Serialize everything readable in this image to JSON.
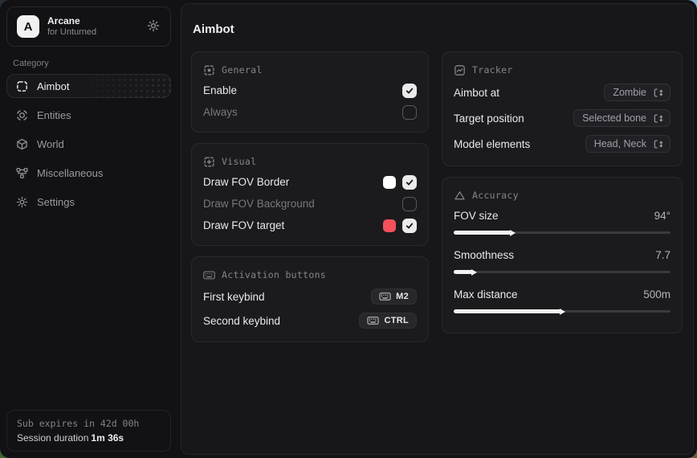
{
  "window": {
    "corner_colors": {
      "top_left": "#2b313a",
      "top_right": "#87b8dc",
      "bottom_left": "#41632f",
      "bottom_right": "#6e5b43"
    }
  },
  "app": {
    "logo_letter": "A",
    "name": "Arcane",
    "subtitle": "for Unturned",
    "gear_icon": "gear-icon"
  },
  "sidebar": {
    "category_label": "Category",
    "items": [
      {
        "label": "Aimbot",
        "icon": "crosshair-icon",
        "active": true
      },
      {
        "label": "Entities",
        "icon": "scan-icon",
        "active": false
      },
      {
        "label": "World",
        "icon": "cube-icon",
        "active": false
      },
      {
        "label": "Miscellaneous",
        "icon": "network-icon",
        "active": false
      },
      {
        "label": "Settings",
        "icon": "gear-icon",
        "active": false
      }
    ],
    "footer": {
      "sub_expires": "Sub expires in 42d 00h",
      "session_label": "Session duration",
      "session_value": "1m 36s"
    }
  },
  "page": {
    "title": "Aimbot"
  },
  "cards": {
    "general": {
      "title": "General",
      "icon": "focus-box-icon",
      "rows": [
        {
          "type": "toggle",
          "label": "Enable",
          "checked": true,
          "enabled": true
        },
        {
          "type": "toggle",
          "label": "Always",
          "checked": false,
          "enabled": false
        }
      ]
    },
    "visual": {
      "title": "Visual",
      "icon": "image-dots-icon",
      "rows": [
        {
          "type": "toggle",
          "label": "Draw FOV Border",
          "checked": true,
          "enabled": true,
          "swatch": "#ffffff"
        },
        {
          "type": "toggle",
          "label": "Draw FOV Background",
          "checked": false,
          "enabled": false
        },
        {
          "type": "toggle",
          "label": "Draw FOV target",
          "checked": true,
          "enabled": true,
          "swatch": "#f4515c"
        }
      ]
    },
    "activation": {
      "title": "Activation buttons",
      "icon": "keyboard-icon",
      "rows": [
        {
          "type": "keybind",
          "label": "First keybind",
          "key": "M2"
        },
        {
          "type": "keybind",
          "label": "Second keybind",
          "key": "CTRL"
        }
      ]
    },
    "tracker": {
      "title": "Tracker",
      "icon": "chart-icon",
      "rows": [
        {
          "type": "select",
          "label": "Aimbot at",
          "value": "Zombie"
        },
        {
          "type": "select",
          "label": "Target position",
          "value": "Selected bone"
        },
        {
          "type": "select",
          "label": "Model elements",
          "value": "Head, Neck"
        }
      ]
    },
    "accuracy": {
      "title": "Accuracy",
      "icon": "triangle-icon",
      "rows": [
        {
          "type": "slider",
          "label": "FOV size",
          "value": "94°",
          "percent": 26
        },
        {
          "type": "slider",
          "label": "Smoothness",
          "value": "7.7",
          "percent": 8
        },
        {
          "type": "slider",
          "label": "Max distance",
          "value": "500m",
          "percent": 49
        }
      ]
    }
  }
}
